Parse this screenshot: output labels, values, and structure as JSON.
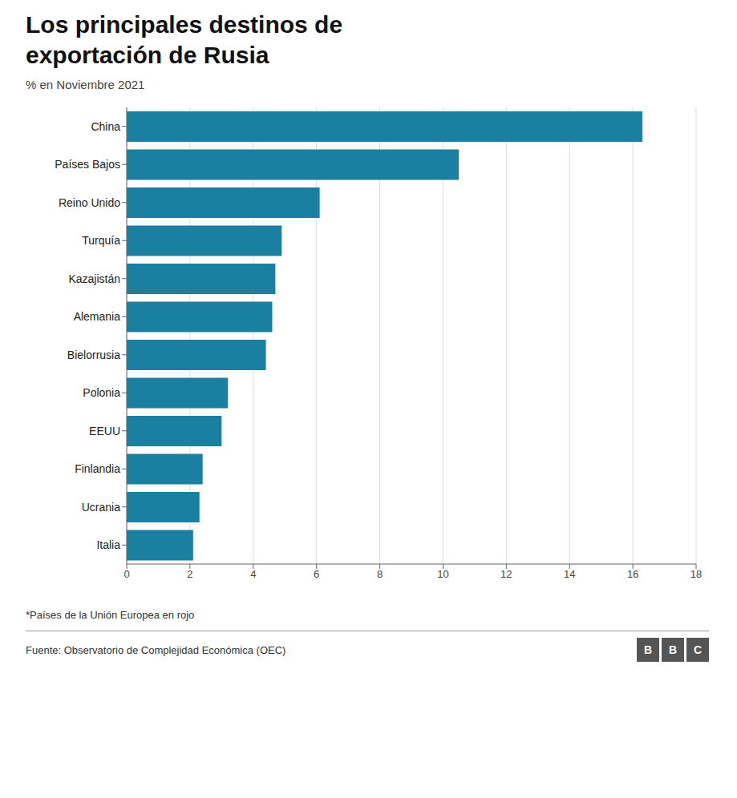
{
  "chart_data": {
    "type": "bar",
    "orientation": "horizontal",
    "title": "Los principales destinos de exportación de Rusia",
    "subtitle": "% en Noviembre 2021",
    "categories": [
      "China",
      "Países Bajos",
      "Reino Unido",
      "Turquía",
      "Kazajistán",
      "Alemania",
      "Bielorrusia",
      "Polonia",
      "EEUU",
      "Finlandia",
      "Ucrania",
      "Italia"
    ],
    "values": [
      16.3,
      10.5,
      6.1,
      4.9,
      4.7,
      4.6,
      4.4,
      3.2,
      3.0,
      2.4,
      2.3,
      2.1
    ],
    "color": "#1a7fa0",
    "xlim": [
      0,
      18
    ],
    "xticks": [
      0,
      2,
      4,
      6,
      8,
      10,
      12,
      14,
      16,
      18
    ],
    "grid": true,
    "annotations": [
      "*Países de la Unión Europea en rojo",
      "Fuente: Observatorio de Complejidad Económica (OEC)",
      "BBC"
    ]
  }
}
